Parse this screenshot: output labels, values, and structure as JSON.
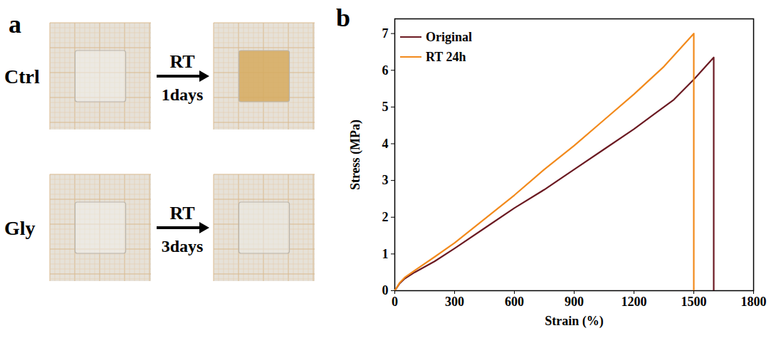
{
  "diagram": {
    "panel_label": "a",
    "rows": [
      {
        "label": "Ctrl",
        "arrow_top": "RT",
        "arrow_bottom": "1days"
      },
      {
        "label": "Gly",
        "arrow_top": "RT",
        "arrow_bottom": "3days"
      }
    ]
  },
  "chart_data": {
    "type": "line",
    "panel_label": "b",
    "x_label": "Strain (%)",
    "y_label": "Stress (MPa)",
    "series": [
      {
        "name": "Original",
        "color": "#6b1a22",
        "x": [
          0,
          25,
          50,
          100,
          200,
          300,
          450,
          600,
          750,
          900,
          1050,
          1200,
          1300,
          1400,
          1500,
          1600,
          1600
        ],
        "values": [
          0,
          0.2,
          0.33,
          0.5,
          0.8,
          1.15,
          1.7,
          2.25,
          2.75,
          3.3,
          3.85,
          4.4,
          4.8,
          5.2,
          5.75,
          6.35,
          0
        ]
      },
      {
        "name": "RT 24h",
        "color": "#f28a1c",
        "x": [
          0,
          25,
          50,
          100,
          200,
          300,
          450,
          600,
          750,
          900,
          1050,
          1200,
          1350,
          1500,
          1500
        ],
        "values": [
          0,
          0.22,
          0.36,
          0.55,
          0.92,
          1.3,
          1.95,
          2.6,
          3.3,
          3.95,
          4.65,
          5.35,
          6.1,
          7.0,
          0
        ]
      }
    ],
    "xlim": [
      0,
      1800
    ],
    "xticks": [
      0,
      300,
      600,
      900,
      1200,
      1500,
      1800
    ],
    "ylim": [
      0,
      7.4
    ],
    "yticks": [
      0,
      1,
      2,
      3,
      4,
      5,
      6,
      7
    ],
    "legend": "upper left",
    "grid": false
  }
}
